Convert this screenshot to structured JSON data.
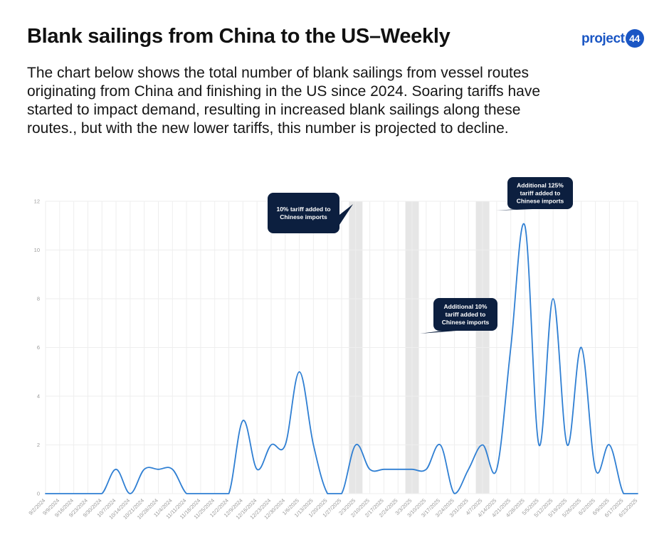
{
  "header": {
    "title": "Blank sailings from China to the US–Weekly",
    "description": "The chart below shows the total number of blank sailings from vessel routes originating from China and finishing in the US since 2024. Soaring tariffs have started to impact demand, resulting in increased blank sailings along these routes., but with the new lower tariffs, this number is projected to decline.",
    "logo_text": "project",
    "logo_number": "44"
  },
  "colors": {
    "line": "#2f7fd3",
    "callout": "#0c1f3f",
    "shade": "#e6e6e6",
    "grid": "#eeeeee",
    "logo": "#1a56c4"
  },
  "chart_data": {
    "type": "line",
    "title": "",
    "xlabel": "",
    "ylabel": "",
    "ylim": [
      0,
      12
    ],
    "yticks": [
      0,
      2,
      4,
      6,
      8,
      10,
      12
    ],
    "grid": true,
    "categories": [
      "9/2/2024",
      "9/9/2024",
      "9/16/2024",
      "9/23/2024",
      "9/30/2024",
      "10/7/2024",
      "10/14/2024",
      "10/21/2024",
      "10/28/2024",
      "11/4/2024",
      "11/11/2024",
      "11/18/2024",
      "11/25/2024",
      "12/2/2024",
      "12/9/2024",
      "12/16/2024",
      "12/23/2024",
      "12/30/2024",
      "1/6/2025",
      "1/13/2025",
      "1/20/2025",
      "1/27/2025",
      "2/3/2025",
      "2/10/2025",
      "2/17/2025",
      "2/24/2025",
      "3/3/2025",
      "3/10/2025",
      "3/17/2025",
      "3/24/2025",
      "3/31/2025",
      "4/7/2025",
      "4/14/2025",
      "4/21/2025",
      "4/28/2025",
      "5/5/2025",
      "5/12/2025",
      "5/19/2025",
      "5/26/2025",
      "6/2/2025",
      "6/9/2025",
      "6/17/2025",
      "6/23/2025"
    ],
    "values": [
      0,
      0,
      0,
      0,
      0,
      1,
      0,
      1,
      1,
      1,
      0,
      0,
      0,
      0,
      3,
      1,
      2,
      2,
      5,
      2,
      0,
      0,
      2,
      1,
      1,
      1,
      1,
      1,
      2,
      0,
      1,
      2,
      1,
      6,
      11,
      2,
      8,
      2,
      6,
      1,
      2,
      0,
      0
    ],
    "shaded_weeks": [
      "2/3/2025",
      "3/3/2025",
      "4/7/2025"
    ],
    "annotations": [
      {
        "lines": [
          "10% tariff added to",
          "Chinese imports"
        ],
        "anchor": "2/3/2025"
      },
      {
        "lines": [
          "Additional 10%",
          "tariff added to",
          "Chinese imports"
        ],
        "anchor": "3/3/2025"
      },
      {
        "lines": [
          "Additional 125%",
          "tariff added to",
          "Chinese imports"
        ],
        "anchor": "4/7/2025"
      }
    ]
  }
}
